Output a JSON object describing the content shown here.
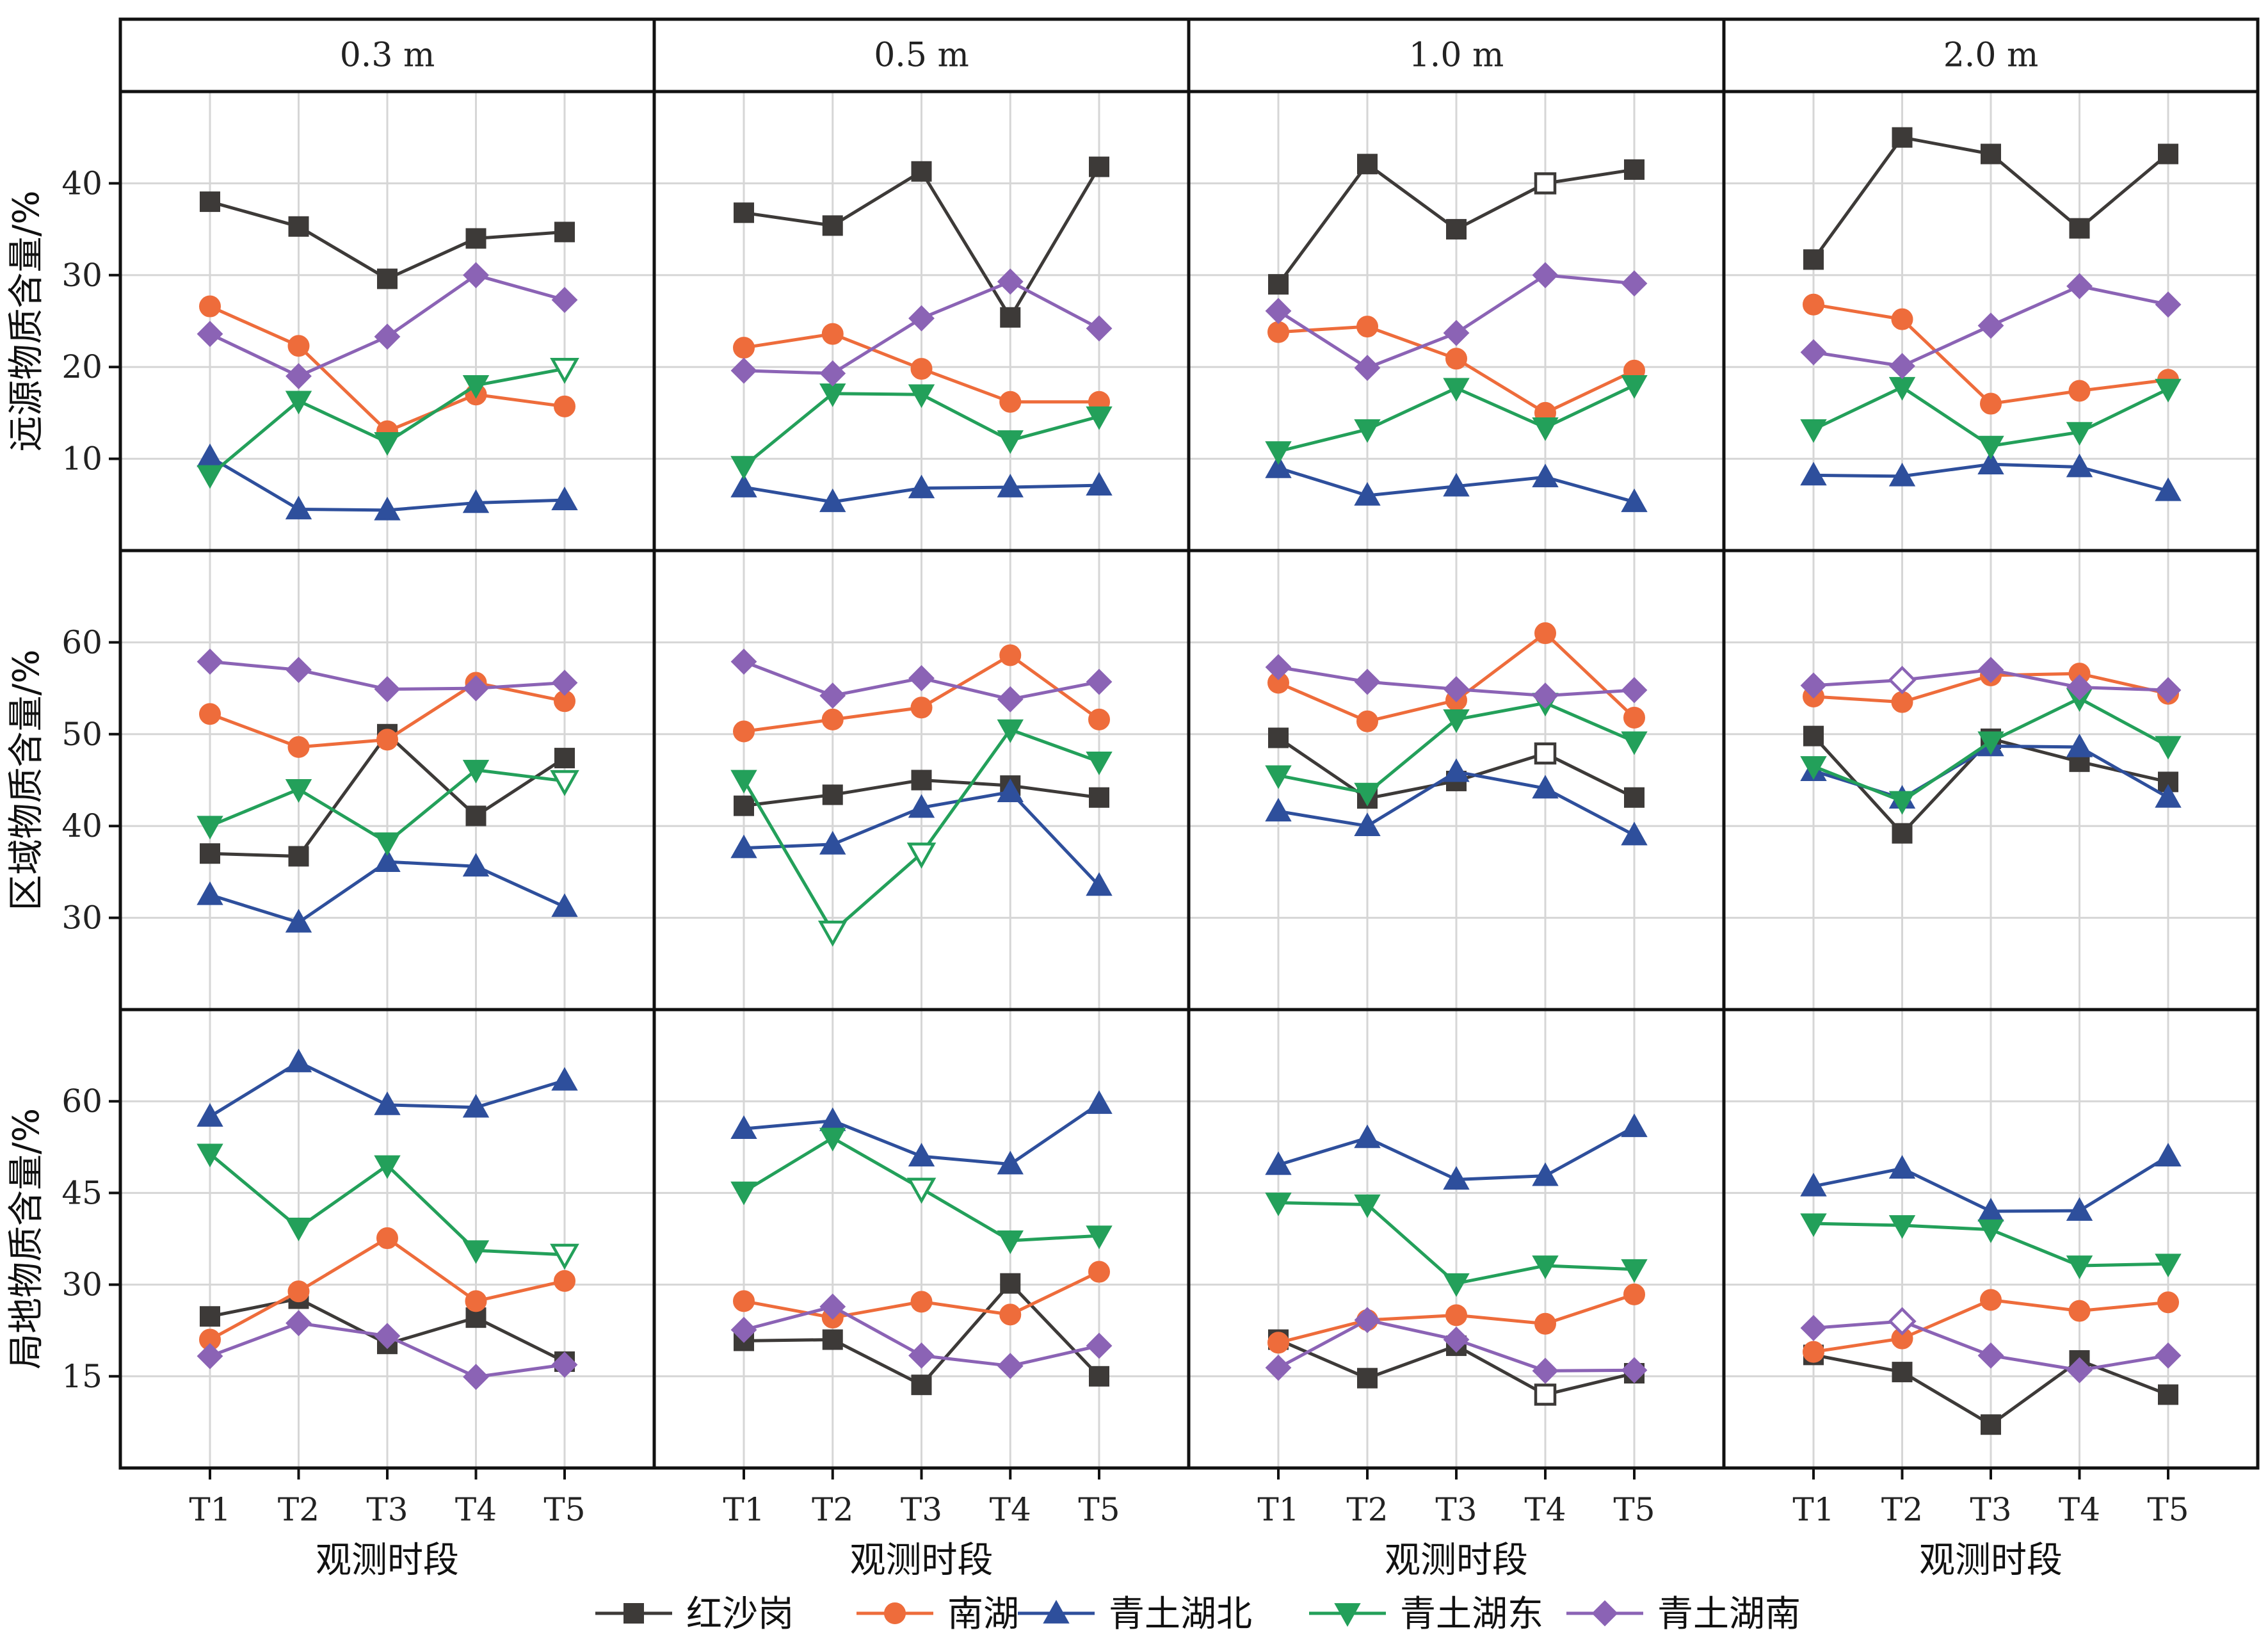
{
  "chart_data": {
    "type": "line",
    "layout": "small-multiples grid: 4 depth columns x 3 component rows, legend at bottom",
    "columns": [
      "0.3 m",
      "0.5 m",
      "1.0 m",
      "2.0 m"
    ],
    "rows": [
      {
        "ylabel": "远源物质含量/%",
        "ylim": [
          0,
          50
        ],
        "yticks": [
          10,
          20,
          30,
          40
        ]
      },
      {
        "ylabel": "区域物质含量/%",
        "ylim": [
          20,
          70
        ],
        "yticks": [
          30,
          40,
          50,
          60
        ]
      },
      {
        "ylabel": "局地物质含量/%",
        "ylim": [
          0,
          75
        ],
        "yticks": [
          15,
          30,
          45,
          60
        ]
      }
    ],
    "x": [
      "T1",
      "T2",
      "T3",
      "T4",
      "T5"
    ],
    "xlabel": "观测时段",
    "grid": true,
    "legend_position": "bottom",
    "series": [
      {
        "name": "红沙岗",
        "marker": "square",
        "color": "#3d3a38"
      },
      {
        "name": "南湖",
        "marker": "circle",
        "color": "#ee6c3b"
      },
      {
        "name": "青土湖北",
        "marker": "triangle-up",
        "color": "#2e4f9c"
      },
      {
        "name": "青土湖东",
        "marker": "triangle-down",
        "color": "#23a05a"
      },
      {
        "name": "青土湖南",
        "marker": "diamond",
        "color": "#8b63b5"
      }
    ],
    "values": [
      [
        [
          [
            38,
            35.3,
            29.6,
            34,
            34.7
          ],
          [
            26.6,
            22.3,
            13,
            17,
            15.7
          ],
          [
            10.2,
            4.5,
            4.4,
            5.2,
            5.5
          ],
          [
            8.2,
            16.3,
            11.8,
            18,
            19.8
          ],
          [
            23.6,
            19,
            23.3,
            30,
            27.3
          ]
        ],
        [
          [
            36.8,
            35.4,
            41.3,
            25.4,
            41.8
          ],
          [
            22.1,
            23.6,
            19.8,
            16.2,
            16.2
          ],
          [
            6.9,
            5.3,
            6.8,
            6.9,
            7.1
          ],
          [
            9.2,
            17.1,
            17,
            12,
            14.6
          ],
          [
            19.6,
            19.3,
            25.3,
            29.3,
            24.2
          ]
        ],
        [
          [
            29,
            42.1,
            35,
            40,
            41.5
          ],
          [
            23.8,
            24.4,
            20.9,
            15,
            19.6
          ],
          [
            9,
            6,
            7,
            8,
            5.3
          ],
          [
            10.8,
            13.2,
            17.7,
            13.4,
            18
          ],
          [
            26.1,
            19.9,
            23.7,
            30,
            29.1
          ]
        ],
        [
          [
            31.7,
            45,
            43.2,
            35.1,
            43.2
          ],
          [
            26.8,
            25.2,
            16,
            17.4,
            18.6
          ],
          [
            8.2,
            8.1,
            9.4,
            9.1,
            6.5
          ],
          [
            13.2,
            17.8,
            11.4,
            12.9,
            17.6
          ],
          [
            21.6,
            20.1,
            24.5,
            28.8,
            26.8
          ]
        ]
      ],
      [
        [
          [
            37,
            36.7,
            50,
            41.1,
            47.4
          ],
          [
            52.2,
            48.6,
            49.4,
            55.6,
            53.6
          ],
          [
            32.5,
            29.5,
            36.1,
            35.6,
            31.2
          ],
          [
            40,
            44,
            38.2,
            46.1,
            44.9
          ],
          [
            57.9,
            57,
            54.9,
            55,
            55.6
          ]
        ],
        [
          [
            42.2,
            43.4,
            45,
            44.4,
            43.1
          ],
          [
            50.3,
            51.6,
            52.9,
            58.6,
            51.6
          ],
          [
            37.6,
            38,
            42,
            43.7,
            33.5
          ],
          [
            45,
            28.5,
            37,
            50.5,
            47
          ],
          [
            57.9,
            54.2,
            56.1,
            53.8,
            55.7
          ]
        ],
        [
          [
            49.6,
            43,
            44.9,
            47.9,
            43.1
          ],
          [
            55.6,
            51.4,
            53.7,
            61,
            51.8
          ],
          [
            41.6,
            40,
            45.9,
            44.1,
            39
          ],
          [
            45.5,
            43.6,
            51.6,
            53.4,
            49.2
          ],
          [
            57.3,
            55.7,
            54.9,
            54.2,
            54.8
          ]
        ],
        [
          [
            49.8,
            39.2,
            49.5,
            47,
            44.8
          ],
          [
            54.1,
            53.5,
            56.4,
            56.6,
            54.4
          ],
          [
            46,
            43,
            48.7,
            48.6,
            43.1
          ],
          [
            46.5,
            42.7,
            49.2,
            53.9,
            48.7
          ],
          [
            55.3,
            55.9,
            57,
            55.1,
            54.8
          ]
        ]
      ],
      [
        [
          [
            24.8,
            27.7,
            20.3,
            24.6,
            17.4
          ],
          [
            21,
            28.9,
            37.6,
            27.3,
            30.6
          ],
          [
            57.5,
            66.4,
            59.4,
            59,
            63.4
          ],
          [
            51.4,
            39.3,
            49.5,
            35.6,
            34.9
          ],
          [
            18.3,
            23.7,
            21.6,
            14.9,
            16.9
          ]
        ],
        [
          [
            20.8,
            21,
            13.6,
            30.2,
            15
          ],
          [
            27.3,
            24.6,
            27.2,
            25.1,
            32.1
          ],
          [
            55.5,
            56.8,
            51,
            49.7,
            59.6
          ],
          [
            45.2,
            54,
            45.7,
            37.2,
            38
          ],
          [
            22.6,
            26.4,
            18.4,
            16.7,
            20
          ]
        ],
        [
          [
            21,
            14.7,
            20,
            12,
            15.5
          ],
          [
            20.5,
            24.2,
            25,
            23.6,
            28.4
          ],
          [
            49.6,
            54,
            47.2,
            47.8,
            55.8
          ],
          [
            43.4,
            43.1,
            30.2,
            33.1,
            32.5
          ],
          [
            16.4,
            24.2,
            21,
            15.9,
            16
          ]
        ],
        [
          [
            18.5,
            15.7,
            7.1,
            17.6,
            12
          ],
          [
            19,
            21.2,
            27.5,
            25.7,
            27.1
          ],
          [
            46.1,
            49,
            42,
            42.1,
            51
          ],
          [
            40,
            39.7,
            39,
            33.1,
            33.4
          ],
          [
            22.9,
            24,
            18.4,
            16,
            18.4
          ]
        ]
      ]
    ],
    "hollow_markers": [
      {
        "row": 0,
        "col": 0,
        "series": 3,
        "point": 4
      },
      {
        "row": 0,
        "col": 2,
        "series": 0,
        "point": 3
      },
      {
        "row": 1,
        "col": 0,
        "series": 3,
        "point": 4
      },
      {
        "row": 1,
        "col": 1,
        "series": 3,
        "point": 1
      },
      {
        "row": 1,
        "col": 1,
        "series": 3,
        "point": 2
      },
      {
        "row": 1,
        "col": 2,
        "series": 0,
        "point": 3
      },
      {
        "row": 1,
        "col": 3,
        "series": 4,
        "point": 1
      },
      {
        "row": 2,
        "col": 0,
        "series": 3,
        "point": 4
      },
      {
        "row": 2,
        "col": 1,
        "series": 3,
        "point": 2
      },
      {
        "row": 2,
        "col": 2,
        "series": 0,
        "point": 3
      },
      {
        "row": 2,
        "col": 3,
        "series": 4,
        "point": 1
      }
    ]
  }
}
